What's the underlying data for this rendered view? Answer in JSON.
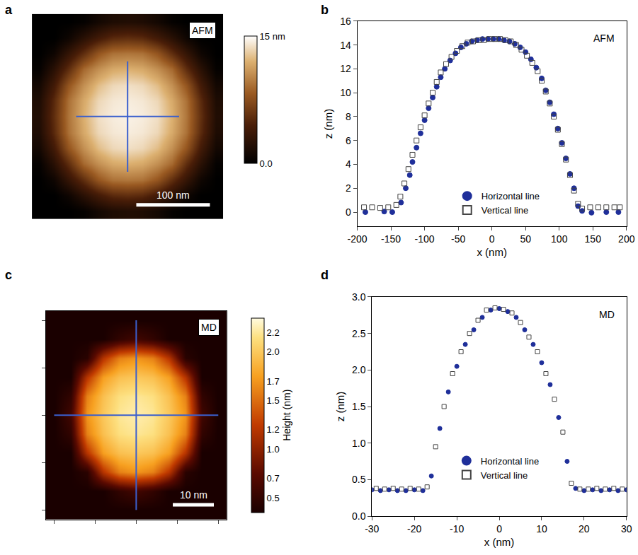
{
  "chart_data": [
    {
      "type": "heatmap",
      "panel": "a",
      "label": "AFM",
      "x": [
        -120,
        -100,
        -80,
        -60,
        -40,
        -20,
        0,
        20,
        40,
        60,
        80,
        100,
        120
      ],
      "y": [
        -120,
        -100,
        -80,
        -60,
        -40,
        -20,
        0,
        20,
        40,
        60,
        80,
        100,
        120
      ],
      "z": [
        [
          0,
          0,
          0,
          0.3,
          1.2,
          1.8,
          2,
          1.8,
          1.2,
          0.3,
          0,
          0,
          0
        ],
        [
          0,
          0,
          0.9,
          2.5,
          4,
          5.2,
          5.5,
          5.2,
          4,
          2.5,
          0.9,
          0,
          0
        ],
        [
          0,
          0.9,
          3.2,
          5.5,
          8,
          9.3,
          9.5,
          9.3,
          8,
          5.5,
          3.2,
          0.9,
          0
        ],
        [
          0.3,
          2.5,
          5.5,
          8.9,
          10.6,
          11.7,
          12,
          11.7,
          10.6,
          8.9,
          5.5,
          2.5,
          0.3
        ],
        [
          1.2,
          4,
          8,
          10.6,
          12.5,
          13.5,
          13.8,
          13.5,
          12.5,
          10.6,
          8,
          4,
          1.2
        ],
        [
          1.8,
          5.2,
          9.3,
          11.7,
          13.5,
          14.1,
          14.3,
          14.1,
          13.5,
          11.7,
          9.3,
          5.2,
          1.8
        ],
        [
          2,
          5.5,
          9.5,
          12,
          13.8,
          14.3,
          14.5,
          14.3,
          13.8,
          12,
          9.5,
          5.5,
          2
        ],
        [
          1.8,
          5.2,
          9.3,
          11.7,
          13.5,
          14.1,
          14.3,
          14.1,
          13.5,
          11.7,
          9.3,
          5.2,
          1.8
        ],
        [
          1.2,
          4,
          8,
          10.6,
          12.5,
          13.5,
          13.8,
          13.5,
          12.5,
          10.6,
          8,
          4,
          1.2
        ],
        [
          0.3,
          2.5,
          5.5,
          8.9,
          10.6,
          11.7,
          12,
          11.7,
          10.6,
          8.9,
          5.5,
          2.5,
          0.3
        ],
        [
          0,
          0.9,
          3.2,
          5.5,
          8,
          9.3,
          9.5,
          9.3,
          8,
          5.5,
          3.2,
          0.9,
          0
        ],
        [
          0,
          0,
          0.9,
          2.5,
          4,
          5.2,
          5.5,
          5.2,
          4,
          2.5,
          0.9,
          0,
          0
        ],
        [
          0,
          0,
          0,
          0.3,
          1.2,
          1.8,
          2,
          1.8,
          1.2,
          0.3,
          0,
          0,
          0
        ]
      ],
      "xlim": [
        -130,
        130
      ],
      "ylim": [
        -130,
        130
      ],
      "zlim": [
        0,
        15
      ],
      "zticks": [
        {
          "value": 0,
          "label": "0.0"
        },
        {
          "value": 15,
          "label": "15 nm"
        }
      ],
      "tick_labels": false,
      "scale_bar": {
        "value": 100,
        "label": "100 nm"
      },
      "profile_lines": {
        "x": [
          -70,
          70
        ],
        "y": [
          -70,
          70
        ]
      }
    },
    {
      "type": "scatter",
      "panel": "b",
      "label": "AFM",
      "x_label": "x (nm)",
      "y_label": "z (nm)",
      "xlim": [
        -200,
        200
      ],
      "xticks": [
        -200,
        -150,
        -100,
        -50,
        0,
        50,
        100,
        150,
        200
      ],
      "ylim": [
        -1.2,
        16
      ],
      "yticks": [
        0,
        2,
        4,
        6,
        8,
        10,
        12,
        14,
        16
      ],
      "legend": "lower center",
      "series": [
        {
          "name": "Horizontal line",
          "color": "#1f2f9a",
          "marker": "circle",
          "x": [
            -188,
            -160,
            -148,
            -135,
            -128,
            -122,
            -118,
            -112,
            -106,
            -100,
            -94,
            -88,
            -82,
            -76,
            -70,
            -62,
            -54,
            -46,
            -38,
            -30,
            -22,
            -14,
            -6,
            2,
            10,
            18,
            26,
            34,
            42,
            50,
            58,
            66,
            74,
            80,
            86,
            92,
            98,
            104,
            110,
            116,
            122,
            128,
            134,
            148,
            170,
            188
          ],
          "values": [
            0,
            0.05,
            0,
            0.8,
            2,
            3.1,
            4.2,
            5.4,
            6.6,
            7.7,
            8.7,
            9.6,
            10.5,
            11.3,
            12,
            12.7,
            13.3,
            13.8,
            14.1,
            14.3,
            14.4,
            14.5,
            14.5,
            14.5,
            14.5,
            14.4,
            14.3,
            14.1,
            13.8,
            13.4,
            12.8,
            12.1,
            11.2,
            10.2,
            9.2,
            8.2,
            7,
            5.8,
            4.5,
            3.2,
            2,
            0.5,
            0.1,
            -0.05,
            0,
            0
          ]
        },
        {
          "name": "Vertical line",
          "color": "#444444",
          "marker": "square-open",
          "x": [
            -190,
            -178,
            -166,
            -154,
            -142,
            -136,
            -130,
            -124,
            -118,
            -112,
            -106,
            -100,
            -94,
            -88,
            -82,
            -76,
            -68,
            -60,
            -52,
            -44,
            -36,
            -28,
            -20,
            -12,
            -4,
            4,
            12,
            20,
            28,
            36,
            44,
            52,
            60,
            68,
            74,
            80,
            86,
            92,
            98,
            104,
            110,
            116,
            122,
            128,
            134,
            146,
            158,
            170,
            182,
            190
          ],
          "values": [
            0.4,
            0.4,
            0.35,
            0.4,
            0.6,
            1.3,
            2.4,
            3.6,
            4.8,
            6,
            7.1,
            8.1,
            9.1,
            10,
            10.9,
            11.7,
            12.4,
            13,
            13.5,
            13.9,
            14.2,
            14.3,
            14.4,
            14.4,
            14.5,
            14.5,
            14.5,
            14.4,
            14.3,
            14,
            13.6,
            13.1,
            12.5,
            11.8,
            11,
            10.1,
            9.1,
            8,
            6.9,
            5.7,
            4.4,
            3.1,
            1.8,
            0.7,
            0.3,
            0.4,
            0.4,
            0.4,
            0.4,
            0.4
          ]
        }
      ]
    },
    {
      "type": "heatmap",
      "panel": "c",
      "label": "MD",
      "x": [
        -20,
        -16,
        -12,
        -8,
        -4,
        0,
        4,
        8,
        12,
        16,
        20
      ],
      "y": [
        -20,
        -16,
        -12,
        -8,
        -4,
        0,
        4,
        8,
        12,
        16,
        20
      ],
      "z": [
        [
          0.35,
          0.35,
          0.35,
          0.35,
          0.35,
          0.35,
          0.35,
          0.35,
          0.35,
          0.35,
          0.35
        ],
        [
          0.35,
          0.35,
          0.35,
          0.35,
          0.5,
          0.6,
          0.5,
          0.35,
          0.35,
          0.35,
          0.35
        ],
        [
          0.35,
          0.35,
          0.45,
          1.2,
          1.6,
          1.7,
          1.6,
          1.2,
          0.45,
          0.35,
          0.35
        ],
        [
          0.35,
          0.35,
          1.2,
          1.75,
          1.95,
          2.0,
          1.95,
          1.75,
          1.2,
          0.35,
          0.35
        ],
        [
          0.35,
          0.5,
          1.6,
          1.95,
          2.15,
          2.2,
          2.15,
          1.95,
          1.6,
          0.5,
          0.35
        ],
        [
          0.35,
          0.6,
          1.7,
          2.0,
          2.2,
          2.25,
          2.2,
          2.0,
          1.7,
          0.6,
          0.35
        ],
        [
          0.35,
          0.5,
          1.6,
          1.95,
          2.15,
          2.2,
          2.15,
          1.95,
          1.6,
          0.5,
          0.35
        ],
        [
          0.35,
          0.35,
          1.2,
          1.75,
          1.95,
          2.0,
          1.95,
          1.75,
          1.2,
          0.35,
          0.35
        ],
        [
          0.35,
          0.35,
          0.45,
          1.2,
          1.6,
          1.7,
          1.6,
          1.2,
          0.45,
          0.35,
          0.35
        ],
        [
          0.35,
          0.35,
          0.35,
          0.35,
          0.5,
          0.6,
          0.5,
          0.35,
          0.35,
          0.35,
          0.35
        ],
        [
          0.35,
          0.35,
          0.35,
          0.35,
          0.35,
          0.35,
          0.35,
          0.35,
          0.35,
          0.35,
          0.35
        ]
      ],
      "xlim": [
        -22,
        22
      ],
      "ylim": [
        -22,
        22
      ],
      "xticks": [
        -20,
        -10,
        0,
        10,
        20
      ],
      "yticks": [
        -20,
        -10,
        0,
        10,
        20
      ],
      "tick_labels": false,
      "zlim": [
        0.35,
        2.35
      ],
      "z_label": "Height (nm)",
      "zticks": [
        0.5,
        0.7,
        {
          "value": 1.0,
          "label": "1.0"
        },
        1.2,
        1.5,
        1.7,
        {
          "value": 2.0,
          "label": "2.0"
        },
        2.2
      ],
      "scale_bar": {
        "value": 10,
        "label": "10 nm"
      },
      "profile_lines": {
        "x": [
          -20,
          20
        ],
        "y": [
          -20,
          20
        ]
      }
    },
    {
      "type": "scatter",
      "panel": "d",
      "label": "MD",
      "x_label": "x (nm)",
      "y_label": "z (nm)",
      "xlim": [
        -30,
        30
      ],
      "xticks": [
        -30,
        -20,
        -10,
        0,
        10,
        20,
        30
      ],
      "ylim": [
        0,
        3
      ],
      "yticks": [
        {
          "value": 0,
          "label": "0.0"
        },
        0.5,
        {
          "value": 1,
          "label": "1.0"
        },
        1.5,
        {
          "value": 2,
          "label": "2.0"
        },
        2.5,
        {
          "value": 3,
          "label": "3.0"
        }
      ],
      "legend": "lower center",
      "series": [
        {
          "name": "Horizontal line",
          "color": "#1f2f9a",
          "marker": "circle",
          "x": [
            -30,
            -28,
            -26,
            -24,
            -22,
            -20,
            -18,
            -16,
            -14,
            -12,
            -10,
            -8,
            -6,
            -4,
            -2,
            0,
            2,
            4,
            6,
            8,
            10,
            12,
            14,
            16,
            18,
            20,
            22,
            24,
            26,
            28,
            30
          ],
          "values": [
            0.36,
            0.35,
            0.36,
            0.35,
            0.35,
            0.36,
            0.35,
            0.55,
            1.2,
            1.7,
            2.05,
            2.35,
            2.55,
            2.72,
            2.82,
            2.84,
            2.8,
            2.72,
            2.55,
            2.35,
            2.1,
            1.8,
            1.35,
            0.75,
            0.38,
            0.35,
            0.36,
            0.35,
            0.36,
            0.35,
            0.36
          ]
        },
        {
          "name": "Vertical line",
          "color": "#444444",
          "marker": "square-open",
          "x": [
            -29,
            -27,
            -25,
            -23,
            -21,
            -19,
            -17,
            -15,
            -13,
            -11,
            -9,
            -7,
            -5,
            -3,
            -1,
            1,
            3,
            5,
            7,
            9,
            11,
            13,
            15,
            17,
            19,
            21,
            23,
            25,
            27,
            29
          ],
          "values": [
            0.38,
            0.37,
            0.38,
            0.37,
            0.38,
            0.37,
            0.4,
            0.95,
            1.5,
            1.95,
            2.25,
            2.5,
            2.68,
            2.82,
            2.85,
            2.83,
            2.78,
            2.65,
            2.45,
            2.25,
            1.95,
            1.6,
            1.15,
            0.45,
            0.37,
            0.37,
            0.38,
            0.37,
            0.38,
            0.37
          ]
        }
      ]
    }
  ]
}
